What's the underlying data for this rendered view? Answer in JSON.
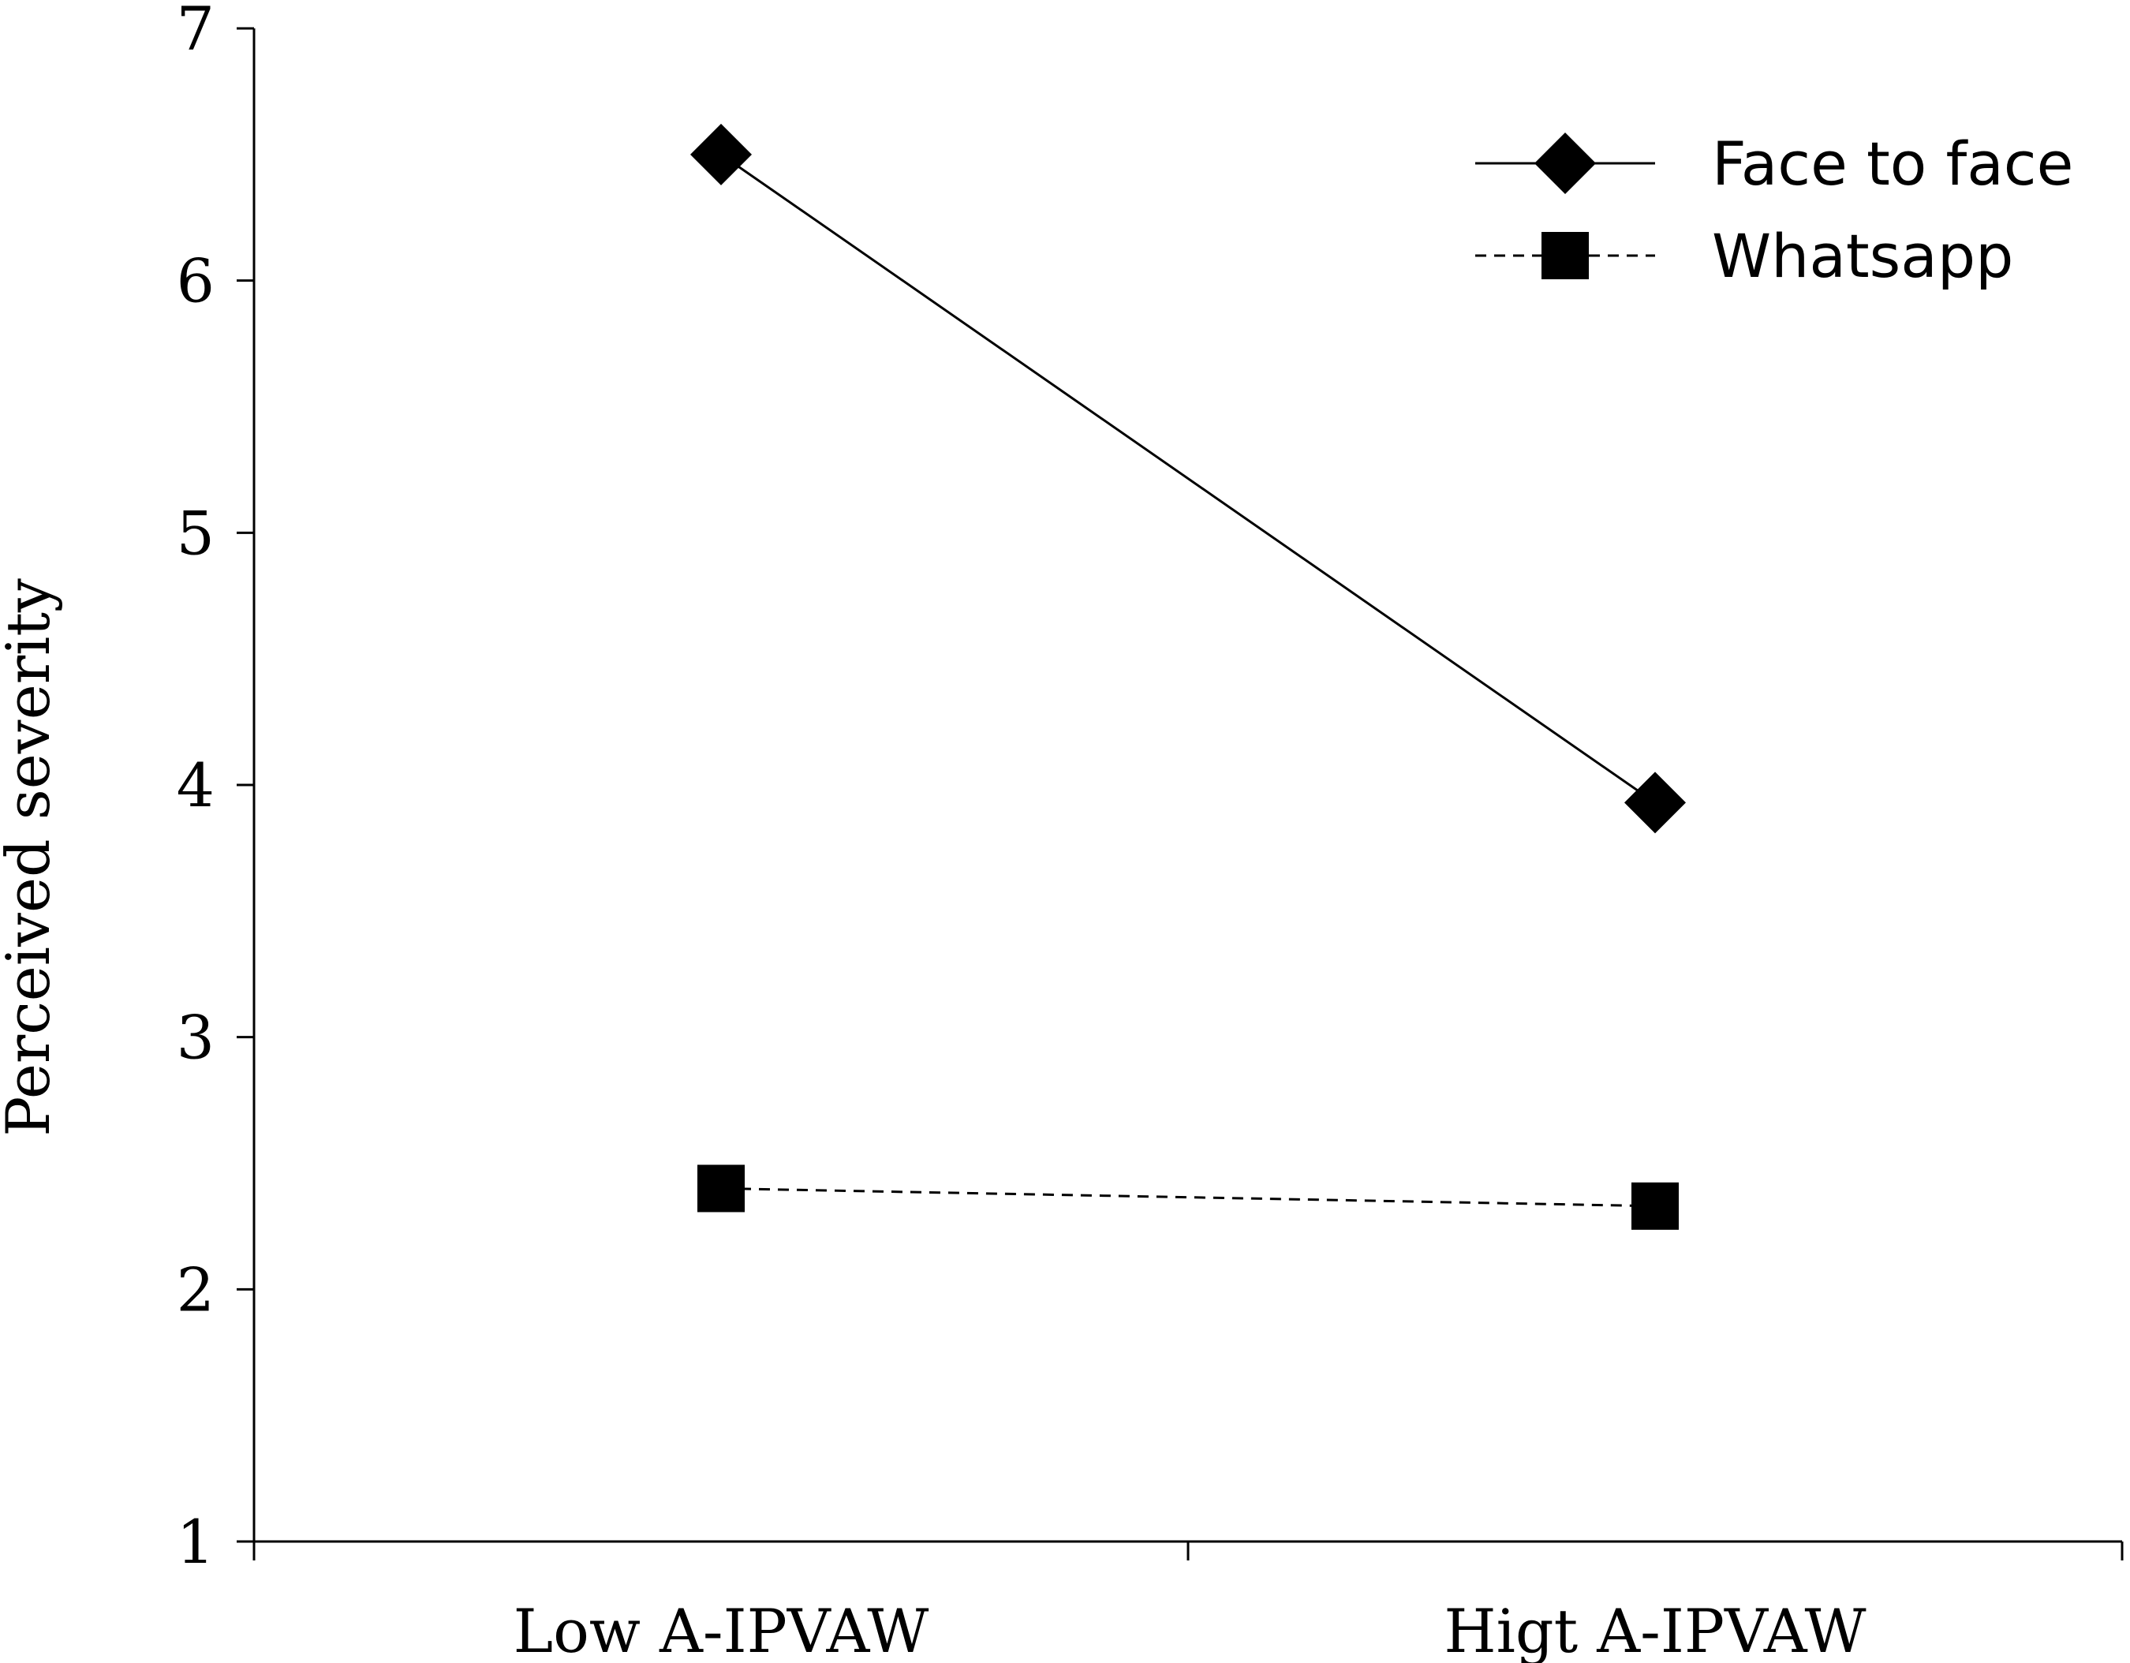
{
  "chart_data": {
    "type": "line",
    "title": "",
    "xlabel": "",
    "ylabel": "Perceived severity",
    "categories": [
      "Low A-IPVAW",
      "Higt A-IPVAW"
    ],
    "ylim": [
      1,
      7
    ],
    "yticks": [
      1,
      2,
      3,
      4,
      5,
      6,
      7
    ],
    "grid": false,
    "legend_position": "top-right",
    "series": [
      {
        "name": "Face to face",
        "values": [
          6.5,
          3.93
        ],
        "marker": "diamond",
        "line_style": "solid",
        "color": "#000000"
      },
      {
        "name": "Whatsapp",
        "values": [
          2.4,
          2.33
        ],
        "marker": "square",
        "line_style": "dashed",
        "color": "#000000"
      }
    ]
  }
}
